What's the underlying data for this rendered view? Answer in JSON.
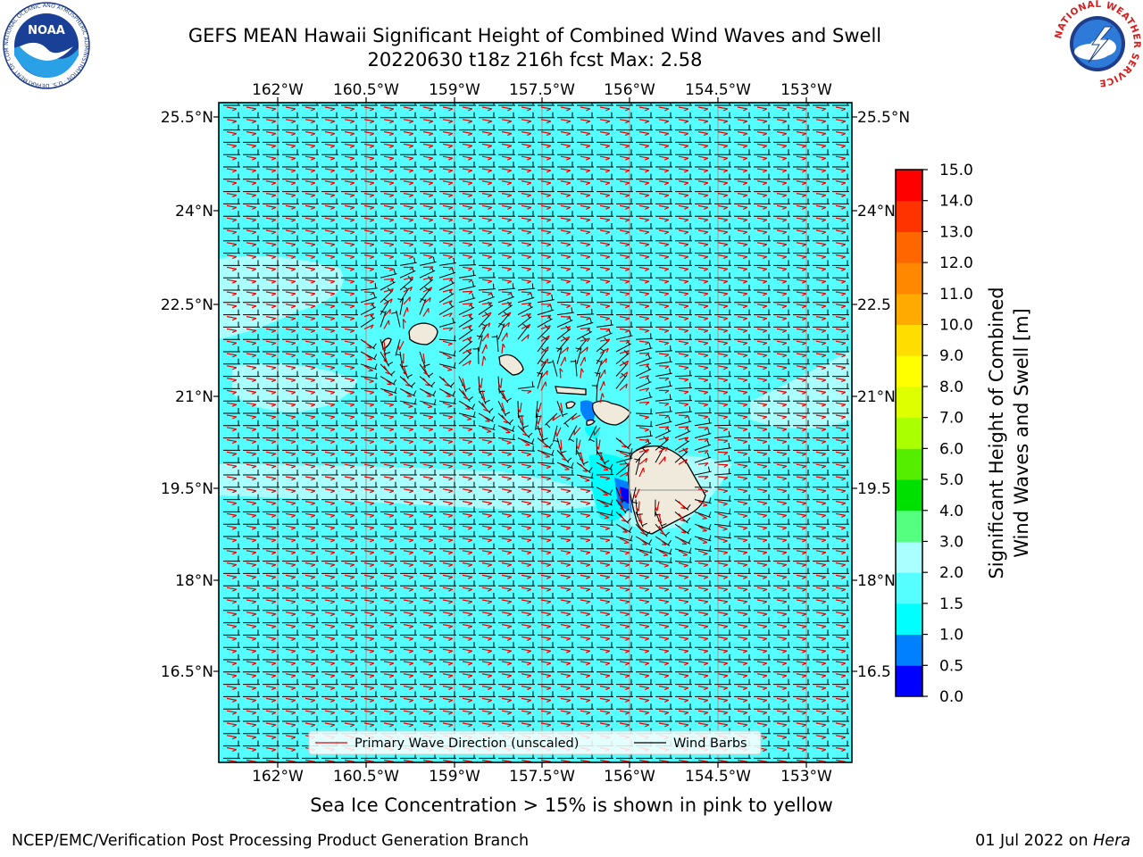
{
  "title": {
    "line1": "GEFS MEAN Hawaii Significant Height of Combined Wind Waves and Swell",
    "line2": "20220630 t18z 216h fcst   Max: 2.58"
  },
  "map": {
    "lon_ticks": [
      "162°W",
      "160.5°W",
      "159°W",
      "157.5°W",
      "156°W",
      "154.5°W",
      "153°W"
    ],
    "lat_ticks_left": [
      "25.5°N",
      "24°N",
      "22.5°N",
      "21°N",
      "19.5°N",
      "18°N",
      "16.5°N"
    ],
    "lat_ticks_right": [
      "25.5°N",
      "24°N",
      "22.5",
      "21°N",
      "19.5",
      "18°N",
      "16.5"
    ],
    "field_color": "#55ffff",
    "low_color": "#aaffff",
    "land_color": "#efeadb",
    "wave_arrow_color": "#e60000",
    "barb_color": "#000000",
    "legend": {
      "wave_label": "Primary Wave Direction (unscaled)",
      "barb_label": "Wind Barbs"
    }
  },
  "colorbar": {
    "label_line1": "Significant Height of Combined",
    "label_line2": "Wind Waves and Swell [m]",
    "ticks": [
      "0.0",
      "0.5",
      "1.0",
      "1.5",
      "2.0",
      "3.0",
      "4.0",
      "5.0",
      "6.0",
      "7.0",
      "8.0",
      "9.0",
      "10.0",
      "11.0",
      "12.0",
      "13.0",
      "14.0",
      "15.0"
    ],
    "colors": [
      "#0000ff",
      "#0080ff",
      "#00ffff",
      "#55ffff",
      "#aaffff",
      "#55ff80",
      "#00e000",
      "#55ee00",
      "#aaff00",
      "#ddff00",
      "#ffff00",
      "#ffdd00",
      "#ffaa00",
      "#ff8800",
      "#ff6600",
      "#ff3300",
      "#ff0000"
    ]
  },
  "note": "Sea Ice Concentration > 15% is shown in pink to yellow",
  "footer": {
    "left": "NCEP/EMC/Verification Post Processing Product Generation Branch",
    "date": "01 Jul 2022 on ",
    "host": "Hera"
  },
  "logos": {
    "left_text": "NOAA",
    "left_ring": "NATIONAL OCEANIC AND ATMOSPHERIC ADMINISTRATION · U.S. DEPARTMENT OF COMMERCE",
    "right_ring": "NATIONAL WEATHER SERVICE"
  }
}
